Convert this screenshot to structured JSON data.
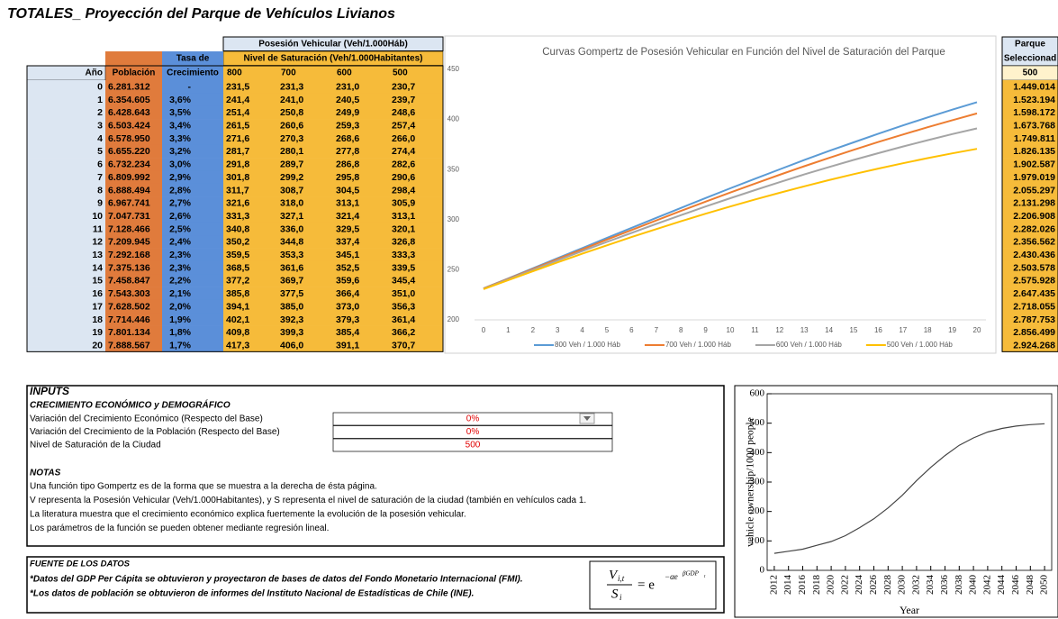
{
  "title": "TOTALES_ Proyección del Parque de Vehículos Livianos",
  "table": {
    "group_header": "Posesión Vehicular (Veh/1.000Háb)",
    "subgroup_header": "Nivel de Saturación (Veh/1.000Habitantes)",
    "tasa_header_top": "Tasa de",
    "columns": [
      "Año",
      "Población",
      "Crecimiento",
      "800",
      "700",
      "600",
      "500"
    ],
    "rows": [
      [
        "0",
        "6.281.312",
        "-",
        "231,5",
        "231,3",
        "231,0",
        "230,7"
      ],
      [
        "1",
        "6.354.605",
        "3,6%",
        "241,4",
        "241,0",
        "240,5",
        "239,7"
      ],
      [
        "2",
        "6.428.643",
        "3,5%",
        "251,4",
        "250,8",
        "249,9",
        "248,6"
      ],
      [
        "3",
        "6.503.424",
        "3,4%",
        "261,5",
        "260,6",
        "259,3",
        "257,4"
      ],
      [
        "4",
        "6.578.950",
        "3,3%",
        "271,6",
        "270,3",
        "268,6",
        "266,0"
      ],
      [
        "5",
        "6.655.220",
        "3,2%",
        "281,7",
        "280,1",
        "277,8",
        "274,4"
      ],
      [
        "6",
        "6.732.234",
        "3,0%",
        "291,8",
        "289,7",
        "286,8",
        "282,6"
      ],
      [
        "7",
        "6.809.992",
        "2,9%",
        "301,8",
        "299,2",
        "295,8",
        "290,6"
      ],
      [
        "8",
        "6.888.494",
        "2,8%",
        "311,7",
        "308,7",
        "304,5",
        "298,4"
      ],
      [
        "9",
        "6.967.741",
        "2,7%",
        "321,6",
        "318,0",
        "313,1",
        "305,9"
      ],
      [
        "10",
        "7.047.731",
        "2,6%",
        "331,3",
        "327,1",
        "321,4",
        "313,1"
      ],
      [
        "11",
        "7.128.466",
        "2,5%",
        "340,8",
        "336,0",
        "329,5",
        "320,1"
      ],
      [
        "12",
        "7.209.945",
        "2,4%",
        "350,2",
        "344,8",
        "337,4",
        "326,8"
      ],
      [
        "13",
        "7.292.168",
        "2,3%",
        "359,5",
        "353,3",
        "345,1",
        "333,3"
      ],
      [
        "14",
        "7.375.136",
        "2,3%",
        "368,5",
        "361,6",
        "352,5",
        "339,5"
      ],
      [
        "15",
        "7.458.847",
        "2,2%",
        "377,2",
        "369,7",
        "359,6",
        "345,4"
      ],
      [
        "16",
        "7.543.303",
        "2,1%",
        "385,8",
        "377,5",
        "366,4",
        "351,0"
      ],
      [
        "17",
        "7.628.502",
        "2,0%",
        "394,1",
        "385,0",
        "373,0",
        "356,3"
      ],
      [
        "18",
        "7.714.446",
        "1,9%",
        "402,1",
        "392,3",
        "379,3",
        "361,4"
      ],
      [
        "19",
        "7.801.134",
        "1,8%",
        "409,8",
        "399,3",
        "385,4",
        "366,2"
      ],
      [
        "20",
        "7.888.567",
        "1,7%",
        "417,3",
        "406,0",
        "391,1",
        "370,7"
      ]
    ]
  },
  "parque": {
    "header": [
      "Parque",
      "Seleccionad"
    ],
    "level": "500",
    "values": [
      "1.449.014",
      "1.523.194",
      "1.598.172",
      "1.673.768",
      "1.749.811",
      "1.826.135",
      "1.902.587",
      "1.979.019",
      "2.055.297",
      "2.131.298",
      "2.206.908",
      "2.282.026",
      "2.356.562",
      "2.430.436",
      "2.503.578",
      "2.575.928",
      "2.647.435",
      "2.718.055",
      "2.787.753",
      "2.856.499",
      "2.924.268"
    ]
  },
  "chart_data": [
    {
      "type": "line",
      "title": "Curvas Gompertz de Posesión Vehicular en Función del Nivel de Saturación del Parque",
      "x": [
        0,
        1,
        2,
        3,
        4,
        5,
        6,
        7,
        8,
        9,
        10,
        11,
        12,
        13,
        14,
        15,
        16,
        17,
        18,
        19,
        20
      ],
      "xlim": [
        0,
        20
      ],
      "xticks": [
        0,
        1,
        2,
        3,
        4,
        5,
        6,
        7,
        8,
        9,
        10,
        11,
        12,
        13,
        14,
        15,
        16,
        17,
        18,
        19,
        20
      ],
      "ylim": [
        200,
        450
      ],
      "yticks": [
        200,
        250,
        300,
        350,
        400,
        450
      ],
      "grid": false,
      "legend": "bottom",
      "series": [
        {
          "name": "800 Veh / 1.000 Háb",
          "color": "#5b9bd5",
          "values": [
            231.5,
            241.4,
            251.4,
            261.5,
            271.6,
            281.7,
            291.8,
            301.8,
            311.7,
            321.6,
            331.3,
            340.8,
            350.2,
            359.5,
            368.5,
            377.2,
            385.8,
            394.1,
            402.1,
            409.8,
            417.3
          ]
        },
        {
          "name": "700 Veh / 1.000 Háb",
          "color": "#ed7d31",
          "values": [
            231.3,
            241.0,
            250.8,
            260.6,
            270.3,
            280.1,
            289.7,
            299.2,
            308.7,
            318.0,
            327.1,
            336.0,
            344.8,
            353.3,
            361.6,
            369.7,
            377.5,
            385.0,
            392.3,
            399.3,
            406.0
          ]
        },
        {
          "name": "600 Veh / 1.000 Háb",
          "color": "#a5a5a5",
          "values": [
            231.0,
            240.5,
            249.9,
            259.3,
            268.6,
            277.8,
            286.8,
            295.8,
            304.5,
            313.1,
            321.4,
            329.5,
            337.4,
            345.1,
            352.5,
            359.6,
            366.4,
            373.0,
            379.3,
            385.4,
            391.1
          ]
        },
        {
          "name": "500 Veh / 1.000 Háb",
          "color": "#ffc000",
          "values": [
            230.7,
            239.7,
            248.6,
            257.4,
            266.0,
            274.4,
            282.6,
            290.6,
            298.4,
            305.9,
            313.1,
            320.1,
            326.8,
            333.3,
            339.5,
            345.4,
            351.0,
            356.3,
            361.4,
            366.2,
            370.7
          ]
        }
      ]
    },
    {
      "type": "line",
      "x_label": "Year",
      "y_label": "vehicle ownership/1000 people",
      "x": [
        2012,
        2014,
        2016,
        2018,
        2020,
        2022,
        2024,
        2026,
        2028,
        2030,
        2032,
        2034,
        2036,
        2038,
        2040,
        2042,
        2044,
        2046,
        2048,
        2050
      ],
      "xlim": [
        2011,
        2051
      ],
      "xticks": [
        2012,
        2014,
        2016,
        2018,
        2020,
        2022,
        2024,
        2026,
        2028,
        2030,
        2032,
        2034,
        2036,
        2038,
        2040,
        2042,
        2044,
        2046,
        2048,
        2050
      ],
      "ylim": [
        0,
        600
      ],
      "yticks": [
        0,
        100,
        200,
        300,
        400,
        500,
        600
      ],
      "grid": false,
      "color": "#444444",
      "values": [
        58,
        65,
        72,
        85,
        98,
        118,
        145,
        175,
        212,
        255,
        305,
        350,
        390,
        425,
        450,
        470,
        482,
        490,
        495,
        498
      ]
    }
  ],
  "inputs": {
    "title": "INPUTS",
    "subtitle": "CRECIMIENTO ECONÓMICO y DEMOGRÁFICO",
    "rows": [
      {
        "label": "Variación del Crecimiento Económico (Respecto del Base)",
        "value": "0%"
      },
      {
        "label": "Variación del Crecimiento de la Población (Respecto del Base)",
        "value": "0%"
      },
      {
        "label": "Nivel de Saturación de la Ciudad",
        "value": "500"
      }
    ]
  },
  "notas": {
    "title": "NOTAS",
    "lines": [
      "Una función tipo Gompertz es de la forma que se muestra a la derecha de ésta página.",
      "V representa la Posesión Vehicular (Veh/1.000Habitantes), y S representa el nivel de saturación de la ciudad (también en vehículos cada 1.",
      "La literatura muestra que el crecimiento económico explica fuertemente la evolución de la posesión vehicular.",
      "Los parámetros de la función se pueden obtener mediante regresión lineal."
    ]
  },
  "fuente": {
    "title": "FUENTE DE LOS DATOS",
    "lines": [
      "*Datos del GDP Per Cápita se obtuvieron y proyectaron de bases de datos del Fondo Monetario Internacional (FMI).",
      "*Los datos de población se obtuvieron de informes del Instituto Nacional de Estadísticas de Chile (INE)."
    ]
  },
  "formula": {
    "num": "V",
    "num_sub": "i,t",
    "den": "S",
    "den_sub": "i",
    "eq": "= e",
    "exp": "−αe",
    "exp2": "βGDP",
    "exp2_sub": "t"
  }
}
